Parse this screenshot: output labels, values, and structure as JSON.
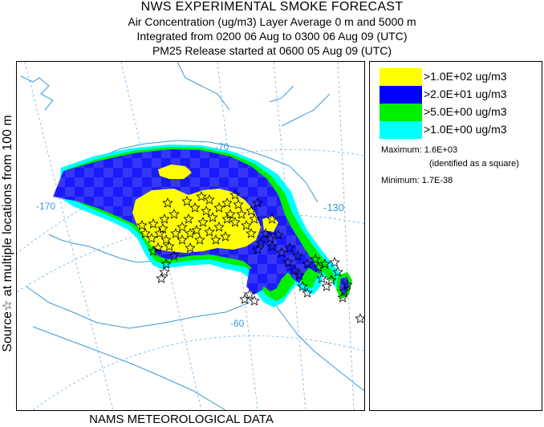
{
  "header": {
    "title": "NWS EXPERIMENTAL SMOKE FORECAST",
    "line2": "Air Concentration (ug/m3) Layer Average    0 m and  5000 m",
    "line3": "Integrated from 0200 06 Aug to 0300 06 Aug 09 (UTC)",
    "line4": "PM25 Release started at 0600 05 Aug 09 (UTC)"
  },
  "side_label": "Source☆ at multiple locations   from   100 m",
  "footer": "NAMS METEOROLOGICAL DATA",
  "map": {
    "graticule_labels": [
      "-70",
      "-170",
      "-130",
      "-60"
    ],
    "source_count": 80,
    "colors": {
      "ocean_lines": "#3a9ad9",
      "border": "#3a9ad9"
    }
  },
  "legend": {
    "entries": [
      {
        "label": ">1.0E+02 ug/m3",
        "color": "#ffff00"
      },
      {
        "label": ">2.0E+01 ug/m3",
        "color": "#0000ff"
      },
      {
        "label": ">5.0E+00 ug/m3",
        "color": "#00ee00"
      },
      {
        "label": ">1.0E+00 ug/m3",
        "color": "#00ffff"
      }
    ],
    "maximum": "Maximum: 1.6E+03",
    "maximum_note": "(identified as a square)",
    "minimum": "Minimum: 1.7E-38"
  }
}
